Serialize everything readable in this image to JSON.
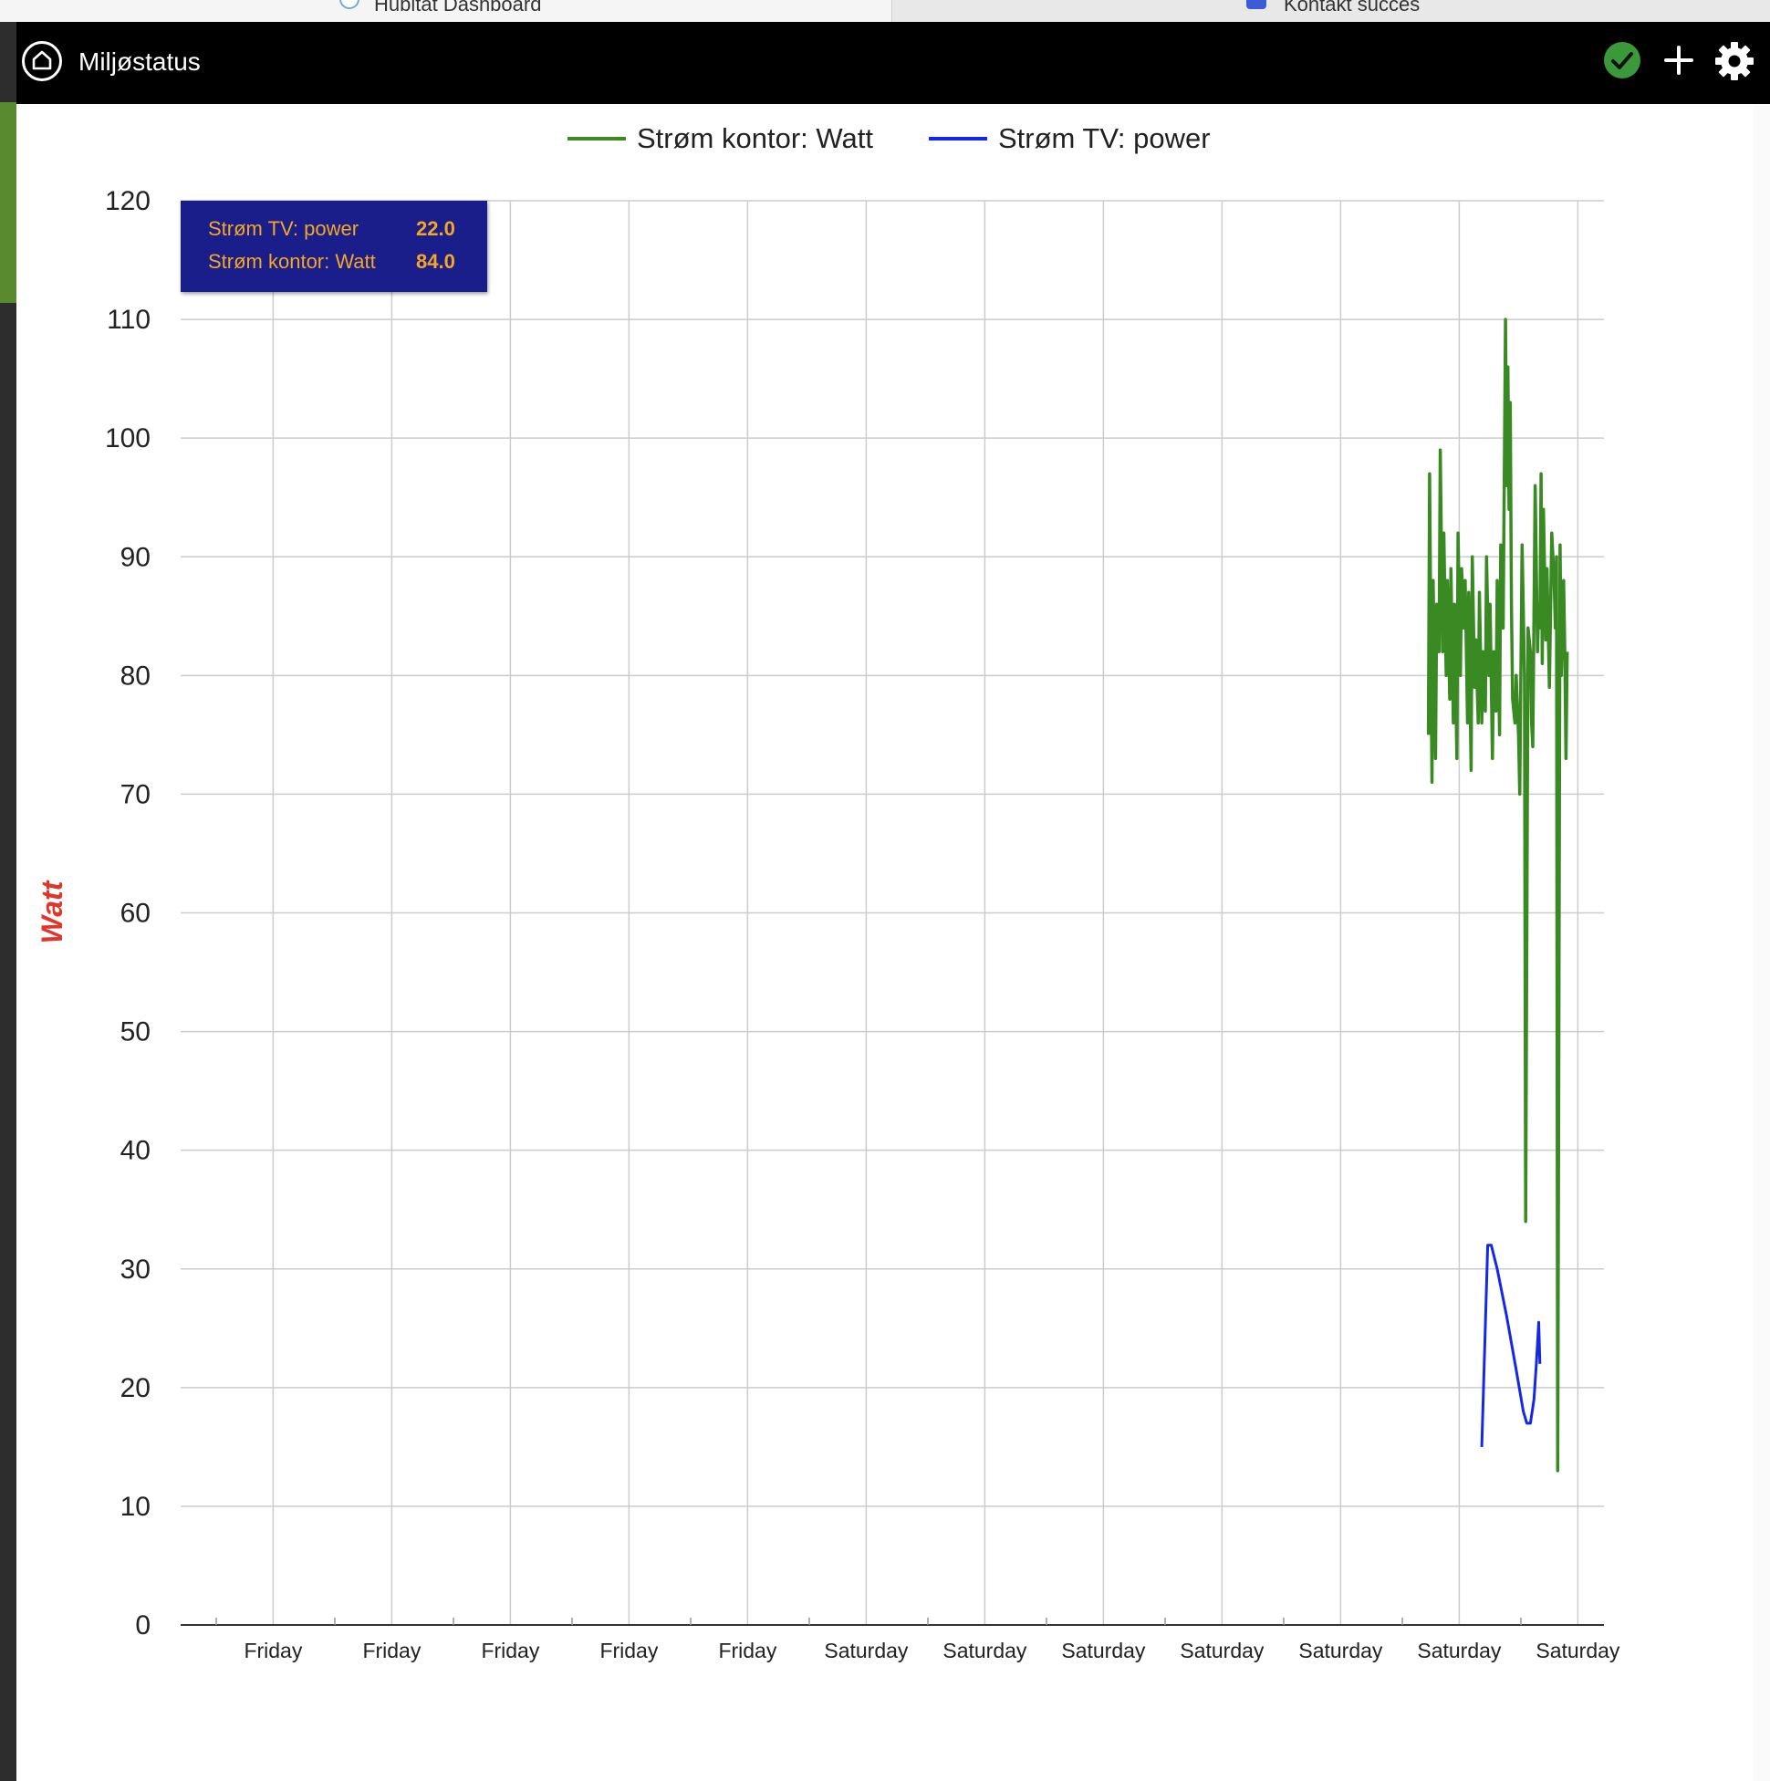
{
  "browser_tabs": [
    {
      "label": "Hubitat Dashboard",
      "active": true
    },
    {
      "label": "Kontakt succes",
      "active": false
    }
  ],
  "header": {
    "title": "Miljøstatus",
    "icons": [
      "home-icon",
      "check-circle-icon",
      "plus-icon",
      "gear-icon"
    ],
    "colors": {
      "background": "#000000",
      "check": "#3a9a3a"
    }
  },
  "tooltip": {
    "rows": [
      {
        "label": "Strøm TV: power",
        "value": "22.0"
      },
      {
        "label": "Strøm kontor: Watt",
        "value": "84.0"
      }
    ],
    "colors": {
      "background": "#1a1e8a",
      "text": "#f5a623"
    }
  },
  "chart_data": {
    "type": "line",
    "title": "",
    "xlabel": "",
    "ylabel": "Watt",
    "ylim": [
      0,
      120
    ],
    "yticks": [
      0,
      10,
      20,
      30,
      40,
      50,
      60,
      70,
      80,
      90,
      100,
      110,
      120
    ],
    "xlim": [
      0,
      12
    ],
    "xticks": [
      {
        "x": 0.78,
        "label": "Friday"
      },
      {
        "x": 1.78,
        "label": "Friday"
      },
      {
        "x": 2.78,
        "label": "Friday"
      },
      {
        "x": 3.78,
        "label": "Friday"
      },
      {
        "x": 4.78,
        "label": "Friday"
      },
      {
        "x": 5.78,
        "label": "Saturday"
      },
      {
        "x": 6.78,
        "label": "Saturday"
      },
      {
        "x": 7.78,
        "label": "Saturday"
      },
      {
        "x": 8.78,
        "label": "Saturday"
      },
      {
        "x": 9.78,
        "label": "Saturday"
      },
      {
        "x": 10.78,
        "label": "Saturday"
      },
      {
        "x": 11.78,
        "label": "Saturday"
      }
    ],
    "grid": true,
    "legend_position": "top",
    "series": [
      {
        "name": "Strøm kontor: Watt",
        "color": "#3a8a24",
        "points": [
          [
            10.52,
            75
          ],
          [
            10.53,
            97
          ],
          [
            10.55,
            71
          ],
          [
            10.56,
            88
          ],
          [
            10.58,
            73
          ],
          [
            10.59,
            86
          ],
          [
            10.61,
            82
          ],
          [
            10.62,
            99
          ],
          [
            10.64,
            82
          ],
          [
            10.65,
            92
          ],
          [
            10.67,
            80
          ],
          [
            10.68,
            88
          ],
          [
            10.7,
            78
          ],
          [
            10.71,
            89
          ],
          [
            10.73,
            76
          ],
          [
            10.74,
            86
          ],
          [
            10.76,
            73
          ],
          [
            10.77,
            92
          ],
          [
            10.79,
            80
          ],
          [
            10.8,
            89
          ],
          [
            10.82,
            84
          ],
          [
            10.83,
            88
          ],
          [
            10.85,
            76
          ],
          [
            10.86,
            87
          ],
          [
            10.88,
            72
          ],
          [
            10.89,
            90
          ],
          [
            10.91,
            79
          ],
          [
            10.92,
            83
          ],
          [
            10.94,
            76
          ],
          [
            10.95,
            87
          ],
          [
            10.97,
            76
          ],
          [
            10.98,
            82
          ],
          [
            11.0,
            77
          ],
          [
            11.01,
            90
          ],
          [
            11.03,
            80
          ],
          [
            11.04,
            86
          ],
          [
            11.06,
            73
          ],
          [
            11.07,
            82
          ],
          [
            11.09,
            77
          ],
          [
            11.1,
            88
          ],
          [
            11.12,
            75
          ],
          [
            11.13,
            91
          ],
          [
            11.15,
            84
          ],
          [
            11.16,
            97
          ],
          [
            11.17,
            110
          ],
          [
            11.18,
            96
          ],
          [
            11.19,
            106
          ],
          [
            11.2,
            94
          ],
          [
            11.21,
            103
          ],
          [
            11.22,
            86
          ],
          [
            11.23,
            78
          ],
          [
            11.25,
            76
          ],
          [
            11.26,
            80
          ],
          [
            11.28,
            75
          ],
          [
            11.29,
            70
          ],
          [
            11.31,
            91
          ],
          [
            11.33,
            80
          ],
          [
            11.34,
            34
          ],
          [
            11.36,
            84
          ],
          [
            11.38,
            82
          ],
          [
            11.39,
            76
          ],
          [
            11.4,
            74
          ],
          [
            11.42,
            96
          ],
          [
            11.44,
            82
          ],
          [
            11.45,
            86
          ],
          [
            11.46,
            84
          ],
          [
            11.47,
            97
          ],
          [
            11.48,
            81
          ],
          [
            11.49,
            94
          ],
          [
            11.51,
            83
          ],
          [
            11.52,
            89
          ],
          [
            11.54,
            79
          ],
          [
            11.56,
            92
          ],
          [
            11.58,
            88
          ],
          [
            11.59,
            84
          ],
          [
            11.6,
            90
          ],
          [
            11.61,
            13
          ],
          [
            11.62,
            51
          ],
          [
            11.63,
            91
          ],
          [
            11.64,
            80
          ],
          [
            11.66,
            88
          ],
          [
            11.67,
            82
          ],
          [
            11.68,
            73
          ],
          [
            11.69,
            82
          ]
        ]
      },
      {
        "name": "Strøm TV: power",
        "color": "#1428e6",
        "points": [
          [
            10.97,
            15
          ],
          [
            11.02,
            32
          ],
          [
            11.05,
            32
          ],
          [
            11.1,
            30
          ],
          [
            11.18,
            26
          ],
          [
            11.26,
            21.5
          ],
          [
            11.32,
            18
          ],
          [
            11.35,
            17
          ],
          [
            11.38,
            17
          ],
          [
            11.41,
            19
          ],
          [
            11.43,
            22
          ],
          [
            11.45,
            25.5
          ],
          [
            11.46,
            22
          ]
        ]
      }
    ]
  }
}
